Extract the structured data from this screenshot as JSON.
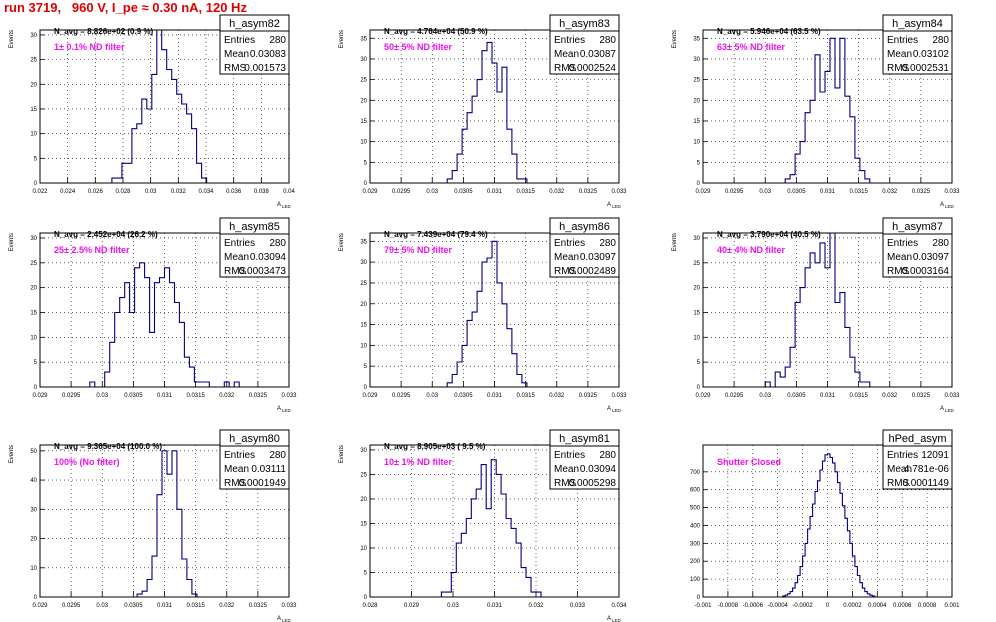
{
  "title": "run 3719,   960 V, I_pe ≈ 0.30 nA, 120 Hz",
  "chart_data": [
    {
      "type": "bar",
      "name": "h_asym82",
      "stats": [
        [
          "Entries",
          "280"
        ],
        [
          "Mean",
          "0.03083"
        ],
        [
          "RMS",
          "0.001573"
        ]
      ],
      "navg": "N_avg = 8.826e+02 (0.9 %)",
      "filter": "1± 0.1% ND filter",
      "ylabel": "Events",
      "xlabel": "A",
      "xlabel_sub": "LED",
      "xlim": [
        0.022,
        0.04
      ],
      "ylim": [
        0,
        31
      ],
      "xticks": [
        "0.022",
        "0.024",
        "0.026",
        "0.028",
        "0.03",
        "0.032",
        "0.034",
        "0.036",
        "0.038",
        "0.04"
      ],
      "xtickvals": [
        0.022,
        0.024,
        0.026,
        0.028,
        0.03,
        0.032,
        0.034,
        0.036,
        0.038,
        0.04
      ],
      "yticks": [
        0,
        5,
        10,
        15,
        20,
        25,
        30
      ],
      "bin_width": 0.00036,
      "bins": [
        [
          0.0272,
          1
        ],
        [
          0.02756,
          1
        ],
        [
          0.02792,
          4
        ],
        [
          0.02828,
          4
        ],
        [
          0.02864,
          11
        ],
        [
          0.029,
          12
        ],
        [
          0.02936,
          17
        ],
        [
          0.02972,
          15
        ],
        [
          0.03008,
          22
        ],
        [
          0.03044,
          31
        ],
        [
          0.0308,
          27
        ],
        [
          0.03116,
          23
        ],
        [
          0.03152,
          21
        ],
        [
          0.03188,
          18
        ],
        [
          0.03224,
          16
        ],
        [
          0.0326,
          14
        ],
        [
          0.03296,
          11
        ],
        [
          0.03332,
          4
        ],
        [
          0.03368,
          1
        ]
      ]
    },
    {
      "type": "bar",
      "name": "h_asym83",
      "stats": [
        [
          "Entries",
          "280"
        ],
        [
          "Mean",
          "0.03087"
        ],
        [
          "RMS",
          "0.0002524"
        ]
      ],
      "navg": "N_avg = 4.764e+04 (50.9 %)",
      "filter": "50± 5% ND filter",
      "ylabel": "Events",
      "xlabel": "A",
      "xlabel_sub": "LED",
      "xlim": [
        0.029,
        0.033
      ],
      "ylim": [
        0,
        37
      ],
      "xticks": [
        "0.029",
        "0.0295",
        "0.03",
        "0.0305",
        "0.031",
        "0.0315",
        "0.032",
        "0.0325",
        "0.033"
      ],
      "xtickvals": [
        0.029,
        0.0295,
        0.03,
        0.0305,
        0.031,
        0.0315,
        0.032,
        0.0325,
        0.033
      ],
      "yticks": [
        0,
        5,
        10,
        15,
        20,
        25,
        30,
        35
      ],
      "bin_width": 8e-05,
      "bins": [
        [
          0.03024,
          1
        ],
        [
          0.03032,
          3
        ],
        [
          0.0304,
          7
        ],
        [
          0.03048,
          13
        ],
        [
          0.03056,
          17
        ],
        [
          0.03064,
          21
        ],
        [
          0.03072,
          25
        ],
        [
          0.0308,
          32
        ],
        [
          0.03088,
          34
        ],
        [
          0.03096,
          29
        ],
        [
          0.03104,
          22
        ],
        [
          0.03112,
          28
        ],
        [
          0.0312,
          13
        ],
        [
          0.03128,
          7
        ],
        [
          0.03136,
          1
        ],
        [
          0.03144,
          1
        ]
      ]
    },
    {
      "type": "bar",
      "name": "h_asym84",
      "stats": [
        [
          "Entries",
          "280"
        ],
        [
          "Mean",
          "0.03102"
        ],
        [
          "RMS",
          "0.0002531"
        ]
      ],
      "navg": "N_avg = 5.946e+04 (63.5 %)",
      "filter": "63± 5% ND filter",
      "ylabel": "Events",
      "xlabel": "A",
      "xlabel_sub": "LED",
      "xlim": [
        0.029,
        0.033
      ],
      "ylim": [
        0,
        37
      ],
      "xticks": [
        "0.029",
        "0.0295",
        "0.03",
        "0.0305",
        "0.031",
        "0.0315",
        "0.032",
        "0.0325",
        "0.033"
      ],
      "xtickvals": [
        0.029,
        0.0295,
        0.03,
        0.0305,
        0.031,
        0.0315,
        0.032,
        0.0325,
        0.033
      ],
      "yticks": [
        0,
        5,
        10,
        15,
        20,
        25,
        30,
        35
      ],
      "bin_width": 8e-05,
      "bins": [
        [
          0.03032,
          1
        ],
        [
          0.0304,
          2
        ],
        [
          0.03048,
          7
        ],
        [
          0.03056,
          10
        ],
        [
          0.03064,
          17
        ],
        [
          0.03072,
          20
        ],
        [
          0.0308,
          31
        ],
        [
          0.03088,
          22
        ],
        [
          0.03096,
          27
        ],
        [
          0.03104,
          35
        ],
        [
          0.03112,
          23
        ],
        [
          0.0312,
          35
        ],
        [
          0.03128,
          21
        ],
        [
          0.03136,
          16
        ],
        [
          0.03144,
          6
        ],
        [
          0.03152,
          3
        ],
        [
          0.0316,
          1
        ]
      ]
    },
    {
      "type": "bar",
      "name": "h_asym85",
      "stats": [
        [
          "Entries",
          "280"
        ],
        [
          "Mean",
          "0.03094"
        ],
        [
          "RMS",
          "0.0003473"
        ]
      ],
      "navg": "N_avg = 2.452e+04 (26.2 %)",
      "filter": "25± 2.5% ND filter",
      "ylabel": "Events",
      "xlabel": "A",
      "xlabel_sub": "LED",
      "xlim": [
        0.029,
        0.033
      ],
      "ylim": [
        0,
        31
      ],
      "xticks": [
        "0.029",
        "0.0295",
        "0.03",
        "0.0305",
        "0.031",
        "0.0315",
        "0.032",
        "0.0325",
        "0.033"
      ],
      "xtickvals": [
        0.029,
        0.0295,
        0.03,
        0.0305,
        0.031,
        0.0315,
        0.032,
        0.0325,
        0.033
      ],
      "yticks": [
        0,
        5,
        10,
        15,
        20,
        25,
        30
      ],
      "bin_width": 8e-05,
      "bins": [
        [
          0.0298,
          1
        ],
        [
          0.03004,
          3
        ],
        [
          0.03012,
          9
        ],
        [
          0.0302,
          15
        ],
        [
          0.03028,
          18
        ],
        [
          0.03036,
          21
        ],
        [
          0.03044,
          15
        ],
        [
          0.03052,
          24
        ],
        [
          0.0306,
          25
        ],
        [
          0.03068,
          22
        ],
        [
          0.03076,
          11
        ],
        [
          0.03084,
          21
        ],
        [
          0.03092,
          22
        ],
        [
          0.031,
          24
        ],
        [
          0.03108,
          21
        ],
        [
          0.03116,
          17
        ],
        [
          0.03124,
          13
        ],
        [
          0.03132,
          6
        ],
        [
          0.0314,
          4
        ],
        [
          0.03148,
          1
        ],
        [
          0.03156,
          1
        ],
        [
          0.03164,
          1
        ],
        [
          0.03196,
          1
        ],
        [
          0.03212,
          1
        ]
      ]
    },
    {
      "type": "bar",
      "name": "h_asym86",
      "stats": [
        [
          "Entries",
          "280"
        ],
        [
          "Mean",
          "0.03097"
        ],
        [
          "RMS",
          "0.0002489"
        ]
      ],
      "navg": "N_avg = 7.439e+04 (79.4 %)",
      "filter": "79± 5% ND filter",
      "ylabel": "Events",
      "xlabel": "A",
      "xlabel_sub": "LED",
      "xlim": [
        0.029,
        0.033
      ],
      "ylim": [
        0,
        37
      ],
      "xticks": [
        "0.029",
        "0.0295",
        "0.03",
        "0.0305",
        "0.031",
        "0.0315",
        "0.032",
        "0.0325",
        "0.033"
      ],
      "xtickvals": [
        0.029,
        0.0295,
        0.03,
        0.0305,
        0.031,
        0.0315,
        0.032,
        0.0325,
        0.033
      ],
      "yticks": [
        0,
        5,
        10,
        15,
        20,
        25,
        30,
        35
      ],
      "bin_width": 8e-05,
      "bins": [
        [
          0.03024,
          1
        ],
        [
          0.03032,
          3
        ],
        [
          0.0304,
          6
        ],
        [
          0.03048,
          10
        ],
        [
          0.03056,
          16
        ],
        [
          0.03064,
          18
        ],
        [
          0.03072,
          23
        ],
        [
          0.0308,
          30
        ],
        [
          0.03088,
          31
        ],
        [
          0.03096,
          35
        ],
        [
          0.03104,
          25
        ],
        [
          0.03112,
          20
        ],
        [
          0.0312,
          14
        ],
        [
          0.03128,
          8
        ],
        [
          0.03136,
          3
        ],
        [
          0.03144,
          1
        ]
      ]
    },
    {
      "type": "bar",
      "name": "h_asym87",
      "stats": [
        [
          "Entries",
          "280"
        ],
        [
          "Mean",
          "0.03097"
        ],
        [
          "RMS",
          "0.0003164"
        ]
      ],
      "navg": "N_avg = 3.790e+04 (40.5 %)",
      "filter": "40± 4% ND filter",
      "ylabel": "Events",
      "xlabel": "A",
      "xlabel_sub": "LED",
      "xlim": [
        0.029,
        0.033
      ],
      "ylim": [
        0,
        31
      ],
      "xticks": [
        "0.029",
        "0.0295",
        "0.03",
        "0.0305",
        "0.031",
        "0.0315",
        "0.032",
        "0.0325",
        "0.033"
      ],
      "xtickvals": [
        0.029,
        0.0295,
        0.03,
        0.0305,
        0.031,
        0.0315,
        0.032,
        0.0325,
        0.033
      ],
      "yticks": [
        0,
        5,
        10,
        15,
        20,
        25,
        30
      ],
      "bin_width": 8e-05,
      "bins": [
        [
          0.03,
          1
        ],
        [
          0.03016,
          3
        ],
        [
          0.03024,
          2
        ],
        [
          0.03032,
          4
        ],
        [
          0.0304,
          8
        ],
        [
          0.03048,
          17
        ],
        [
          0.03056,
          20
        ],
        [
          0.03064,
          24
        ],
        [
          0.03072,
          27
        ],
        [
          0.0308,
          25
        ],
        [
          0.03088,
          29
        ],
        [
          0.03096,
          24
        ],
        [
          0.03104,
          31
        ],
        [
          0.03112,
          17
        ],
        [
          0.0312,
          19
        ],
        [
          0.03128,
          12
        ],
        [
          0.03136,
          6
        ],
        [
          0.03144,
          3
        ],
        [
          0.03152,
          1
        ],
        [
          0.0316,
          1
        ]
      ]
    },
    {
      "type": "bar",
      "name": "h_asym80",
      "stats": [
        [
          "Entries",
          "280"
        ],
        [
          "Mean",
          "0.03111"
        ],
        [
          "RMS",
          "0.0001949"
        ]
      ],
      "navg": "N_avg = 9.365e+04 (100.0 %)",
      "filter": "100% (No filter)",
      "ylabel": "Events",
      "xlabel": "A",
      "xlabel_sub": "LED",
      "xlim": [
        0.029,
        0.033
      ],
      "ylim": [
        0,
        52
      ],
      "xticks": [
        "0.029",
        "0.0295",
        "0.03",
        "0.0305",
        "0.031",
        "0.0315",
        "0.032",
        "0.0325",
        "0.033"
      ],
      "xtickvals": [
        0.029,
        0.0295,
        0.03,
        0.0305,
        0.031,
        0.0315,
        0.032,
        0.0325,
        0.033
      ],
      "yticks": [
        0,
        10,
        20,
        30,
        40,
        50
      ],
      "bin_width": 8e-05,
      "bins": [
        [
          0.03056,
          1
        ],
        [
          0.03064,
          2
        ],
        [
          0.03072,
          6
        ],
        [
          0.0308,
          14
        ],
        [
          0.03088,
          35
        ],
        [
          0.03096,
          50
        ],
        [
          0.03104,
          42
        ],
        [
          0.03112,
          50
        ],
        [
          0.0312,
          30
        ],
        [
          0.03128,
          13
        ],
        [
          0.03136,
          6
        ],
        [
          0.03144,
          1
        ]
      ]
    },
    {
      "type": "bar",
      "name": "h_asym81",
      "stats": [
        [
          "Entries",
          "280"
        ],
        [
          "Mean",
          "0.03094"
        ],
        [
          "RMS",
          "0.0005298"
        ]
      ],
      "navg": "N_avg = 8.905e+03 ( 9.5 %)",
      "filter": "10± 1% ND filter",
      "ylabel": "Events",
      "xlabel": "A",
      "xlabel_sub": "LED",
      "xlim": [
        0.028,
        0.034
      ],
      "ylim": [
        0,
        31
      ],
      "xticks": [
        "0.028",
        "0.029",
        "0.03",
        "0.031",
        "0.032",
        "0.033",
        "0.034"
      ],
      "xtickvals": [
        0.028,
        0.029,
        0.03,
        0.031,
        0.032,
        0.033,
        0.034
      ],
      "yticks": [
        0,
        5,
        10,
        15,
        20,
        25,
        30
      ],
      "bin_width": 0.00012,
      "bins": [
        [
          0.02972,
          1
        ],
        [
          0.02984,
          1
        ],
        [
          0.02996,
          5
        ],
        [
          0.03008,
          11
        ],
        [
          0.0302,
          13
        ],
        [
          0.03032,
          16
        ],
        [
          0.03044,
          20
        ],
        [
          0.03056,
          22
        ],
        [
          0.03068,
          27
        ],
        [
          0.0308,
          18
        ],
        [
          0.03092,
          28
        ],
        [
          0.03104,
          25
        ],
        [
          0.03116,
          21
        ],
        [
          0.03128,
          16
        ],
        [
          0.0314,
          14
        ],
        [
          0.03152,
          11
        ],
        [
          0.03164,
          6
        ],
        [
          0.03176,
          4
        ],
        [
          0.03188,
          1
        ],
        [
          0.032,
          1
        ]
      ]
    },
    {
      "type": "bar",
      "name": "hPed_asym",
      "stats": [
        [
          "Entries",
          "12091"
        ],
        [
          "Mean",
          "4.781e-06"
        ],
        [
          "RMS",
          "0.0001149"
        ]
      ],
      "navg": "",
      "filter": "Shutter Closed",
      "ylabel": "",
      "xlabel": "",
      "xlabel_sub": "",
      "xlim": [
        -0.001,
        0.001
      ],
      "ylim": [
        0,
        850
      ],
      "xticks": [
        "-0.001",
        "-0.0008",
        "-0.0006",
        "-0.0004",
        "-0.0002",
        "0",
        "0.0002",
        "0.0004",
        "0.0006",
        "0.0008",
        "0.001"
      ],
      "xtickvals": [
        -0.001,
        -0.0008,
        -0.0006,
        -0.0004,
        -0.0002,
        0,
        0.0002,
        0.0004,
        0.0006,
        0.0008,
        0.001
      ],
      "yticks": [
        0,
        100,
        200,
        300,
        400,
        500,
        600,
        700
      ],
      "bin_width": 2e-05,
      "bins": [
        [
          -0.00036,
          5
        ],
        [
          -0.00034,
          10
        ],
        [
          -0.00032,
          18
        ],
        [
          -0.0003,
          30
        ],
        [
          -0.00028,
          50
        ],
        [
          -0.00026,
          80
        ],
        [
          -0.00024,
          120
        ],
        [
          -0.00022,
          170
        ],
        [
          -0.0002,
          230
        ],
        [
          -0.00018,
          300
        ],
        [
          -0.00016,
          380
        ],
        [
          -0.00014,
          450
        ],
        [
          -0.00012,
          520
        ],
        [
          -0.0001,
          590
        ],
        [
          -8e-05,
          650
        ],
        [
          -6e-05,
          710
        ],
        [
          -4e-05,
          760
        ],
        [
          -2e-05,
          795
        ],
        [
          0,
          800
        ],
        [
          2e-05,
          780
        ],
        [
          4e-05,
          750
        ],
        [
          6e-05,
          700
        ],
        [
          8e-05,
          640
        ],
        [
          0.0001,
          580
        ],
        [
          0.00012,
          510
        ],
        [
          0.00014,
          440
        ],
        [
          0.00016,
          370
        ],
        [
          0.00018,
          300
        ],
        [
          0.0002,
          230
        ],
        [
          0.00022,
          170
        ],
        [
          0.00024,
          120
        ],
        [
          0.00026,
          80
        ],
        [
          0.00028,
          50
        ],
        [
          0.0003,
          30
        ],
        [
          0.00032,
          18
        ],
        [
          0.00034,
          10
        ],
        [
          0.00036,
          5
        ]
      ]
    }
  ]
}
